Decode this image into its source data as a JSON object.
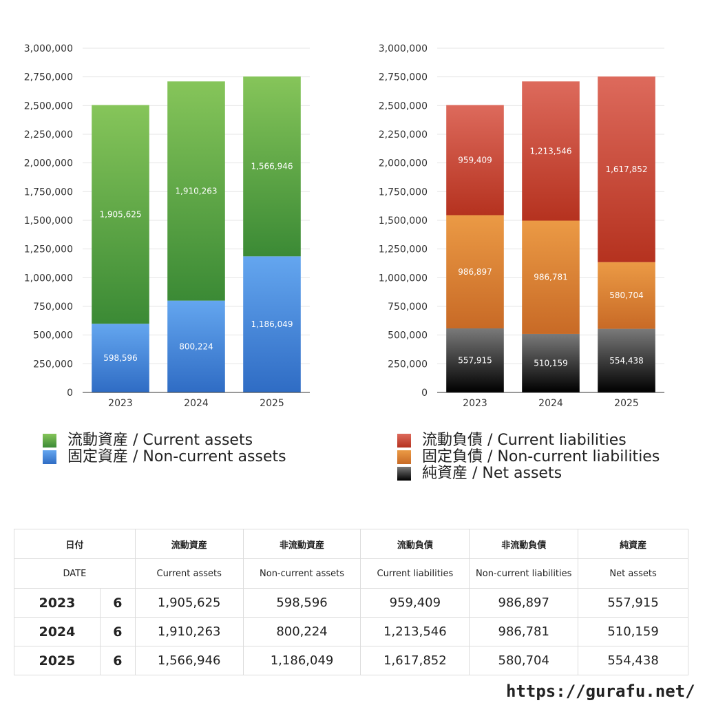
{
  "chart_data": [
    {
      "type": "bar",
      "stacked": true,
      "categories": [
        "2023",
        "2024",
        "2025"
      ],
      "series": [
        {
          "name": "固定資産 / Non-current assets",
          "values": [
            598596,
            800224,
            1186049
          ],
          "color_top": "#64a6ef",
          "color_bottom": "#2f6cc4"
        },
        {
          "name": "流動資産 / Current assets",
          "values": [
            1905625,
            1910263,
            1566946
          ],
          "color_top": "#86c55a",
          "color_bottom": "#3b8a35"
        }
      ],
      "ylim": [
        0,
        3000000
      ],
      "yticks": [
        "0",
        "250,000",
        "500,000",
        "750,000",
        "1,000,000",
        "1,250,000",
        "1,500,000",
        "1,750,000",
        "2,000,000",
        "2,250,000",
        "2,500,000",
        "2,750,000",
        "3,000,000"
      ],
      "grid": true,
      "legend_position": "bottom"
    },
    {
      "type": "bar",
      "stacked": true,
      "categories": [
        "2023",
        "2024",
        "2025"
      ],
      "series": [
        {
          "name": "純資産 / Net assets",
          "values": [
            557915,
            510159,
            554438
          ],
          "color_top": "#7a7a7a",
          "color_bottom": "#000000"
        },
        {
          "name": "固定負債 / Non-current liabilities",
          "values": [
            986897,
            986781,
            580704
          ],
          "color_top": "#eb9a45",
          "color_bottom": "#c86a26"
        },
        {
          "name": "流動負債 / Current liabilities",
          "values": [
            959409,
            1213546,
            1617852
          ],
          "color_top": "#dd6a5c",
          "color_bottom": "#b5321f"
        }
      ],
      "ylim": [
        0,
        3000000
      ],
      "yticks": [
        "0",
        "250,000",
        "500,000",
        "750,000",
        "1,000,000",
        "1,250,000",
        "1,500,000",
        "1,750,000",
        "2,000,000",
        "2,250,000",
        "2,500,000",
        "2,750,000",
        "3,000,000"
      ],
      "grid": true,
      "legend_position": "bottom"
    }
  ],
  "legend_left": [
    {
      "label": "流動資産 / Current assets",
      "color": "#5aa33f"
    },
    {
      "label": "固定資産 / Non-current assets",
      "color": "#3f86dc"
    }
  ],
  "legend_right": [
    {
      "label": "流動負債 / Current liabilities",
      "color": "#d24a3a"
    },
    {
      "label": "固定負債 / Non-current liabilities",
      "color": "#e38636"
    },
    {
      "label": "純資産 / Net assets",
      "color": "#222222"
    }
  ],
  "table": {
    "header_jp": [
      "日付",
      "",
      "流動資産",
      "非流動資産",
      "流動負債",
      "非流動負債",
      "純資産"
    ],
    "header_en": [
      "DATE",
      "",
      "Current assets",
      "Non-current assets",
      "Current liabilities",
      "Non-current liabilities",
      "Net assets"
    ],
    "rows": [
      [
        "2023",
        "6",
        "1,905,625",
        "598,596",
        "959,409",
        "986,897",
        "557,915"
      ],
      [
        "2024",
        "6",
        "1,910,263",
        "800,224",
        "1,213,546",
        "986,781",
        "510,159"
      ],
      [
        "2025",
        "6",
        "1,566,946",
        "1,186,049",
        "1,617,852",
        "580,704",
        "554,438"
      ]
    ]
  },
  "site_url": "https://gurafu.net/"
}
